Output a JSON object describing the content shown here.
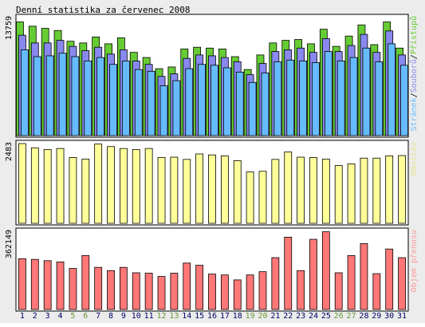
{
  "title": "Denní statistika za červenec 2008",
  "days": [
    "1",
    "2",
    "3",
    "4",
    "5",
    "6",
    "7",
    "8",
    "9",
    "10",
    "11",
    "12",
    "13",
    "14",
    "15",
    "16",
    "17",
    "18",
    "19",
    "20",
    "21",
    "22",
    "23",
    "24",
    "25",
    "26",
    "27",
    "28",
    "29",
    "30",
    "31"
  ],
  "weekend_days": [
    "5",
    "6",
    "12",
    "13",
    "19",
    "20",
    "26",
    "27"
  ],
  "colors": {
    "pristupy": "#66cc33",
    "soubory": "#8888ee",
    "stranky": "#66bbff",
    "navstevy": "#ffff99",
    "objem": "#ff7777",
    "weekday_label": "#000066",
    "weekend_label": "#669933",
    "background": "#ececec",
    "panel": "#ffffff"
  },
  "chart_data": [
    {
      "type": "bar",
      "ymax_label": "13759",
      "ylim": [
        0,
        13759
      ],
      "legend": {
        "placement": "right",
        "parts": [
          {
            "text": "Stránek",
            "color": "#66bbff"
          },
          {
            "text": "/",
            "color": "#000000"
          },
          {
            "text": "Souborů",
            "color": "#8888ee"
          },
          {
            "text": "/",
            "color": "#000000"
          },
          {
            "text": "Přístupů",
            "color": "#66cc33"
          }
        ]
      },
      "series": [
        {
          "name": "Přístupů",
          "color": "#66cc33",
          "values": [
            13250,
            12750,
            12500,
            12250,
            11000,
            10800,
            11500,
            10700,
            11400,
            9700,
            9100,
            7800,
            8000,
            10100,
            10300,
            10200,
            10100,
            9200,
            7700,
            9400,
            10800,
            11100,
            11200,
            10700,
            12400,
            10400,
            11600,
            12900,
            10600,
            13250,
            10200
          ]
        },
        {
          "name": "Souborů",
          "color": "#8888ee",
          "values": [
            11700,
            10800,
            10800,
            11100,
            10400,
            9900,
            10300,
            9500,
            10000,
            8700,
            8300,
            6900,
            7200,
            9000,
            9400,
            9300,
            9100,
            8600,
            7100,
            8400,
            9800,
            10000,
            10200,
            9700,
            11300,
            9800,
            10500,
            11800,
            9700,
            12200,
            9400
          ]
        },
        {
          "name": "Stránek",
          "color": "#66bbff",
          "values": [
            10000,
            9200,
            9300,
            9600,
            9200,
            8700,
            9100,
            8300,
            8700,
            7700,
            7500,
            5800,
            6400,
            7800,
            8300,
            8200,
            7900,
            7400,
            6200,
            7300,
            8600,
            8800,
            8700,
            8500,
            9800,
            8700,
            9100,
            10200,
            8600,
            10700,
            8200
          ]
        }
      ]
    },
    {
      "type": "bar",
      "ymax_label": "2483",
      "ylim": [
        0,
        2483
      ],
      "legend": {
        "placement": "right",
        "parts": [
          {
            "text": "Návštěv",
            "color": "#e6e699"
          }
        ]
      },
      "series": [
        {
          "name": "Návštěv",
          "color": "#ffff99",
          "values": [
            2483,
            2350,
            2300,
            2330,
            2050,
            2000,
            2470,
            2390,
            2330,
            2300,
            2330,
            2050,
            2060,
            1990,
            2160,
            2130,
            2100,
            1950,
            1600,
            1620,
            1990,
            2220,
            2060,
            2050,
            2000,
            1800,
            1850,
            2030,
            2030,
            2100,
            2110
          ]
        }
      ]
    },
    {
      "type": "bar",
      "ymax_label": "362149",
      "ylim": [
        0,
        362149
      ],
      "legend": {
        "placement": "right",
        "parts": [
          {
            "text": "Objem přenosu",
            "color": "#ff9999"
          }
        ]
      },
      "series": [
        {
          "name": "Objem přenosu",
          "color": "#ff7777",
          "values": [
            235000,
            232000,
            226000,
            220000,
            190000,
            250000,
            195000,
            180000,
            195000,
            170000,
            168000,
            153000,
            168000,
            215000,
            205000,
            164000,
            160000,
            137000,
            160000,
            175000,
            240000,
            335000,
            180000,
            325000,
            360000,
            170000,
            250000,
            305000,
            166000,
            280000,
            240000
          ]
        }
      ]
    }
  ]
}
